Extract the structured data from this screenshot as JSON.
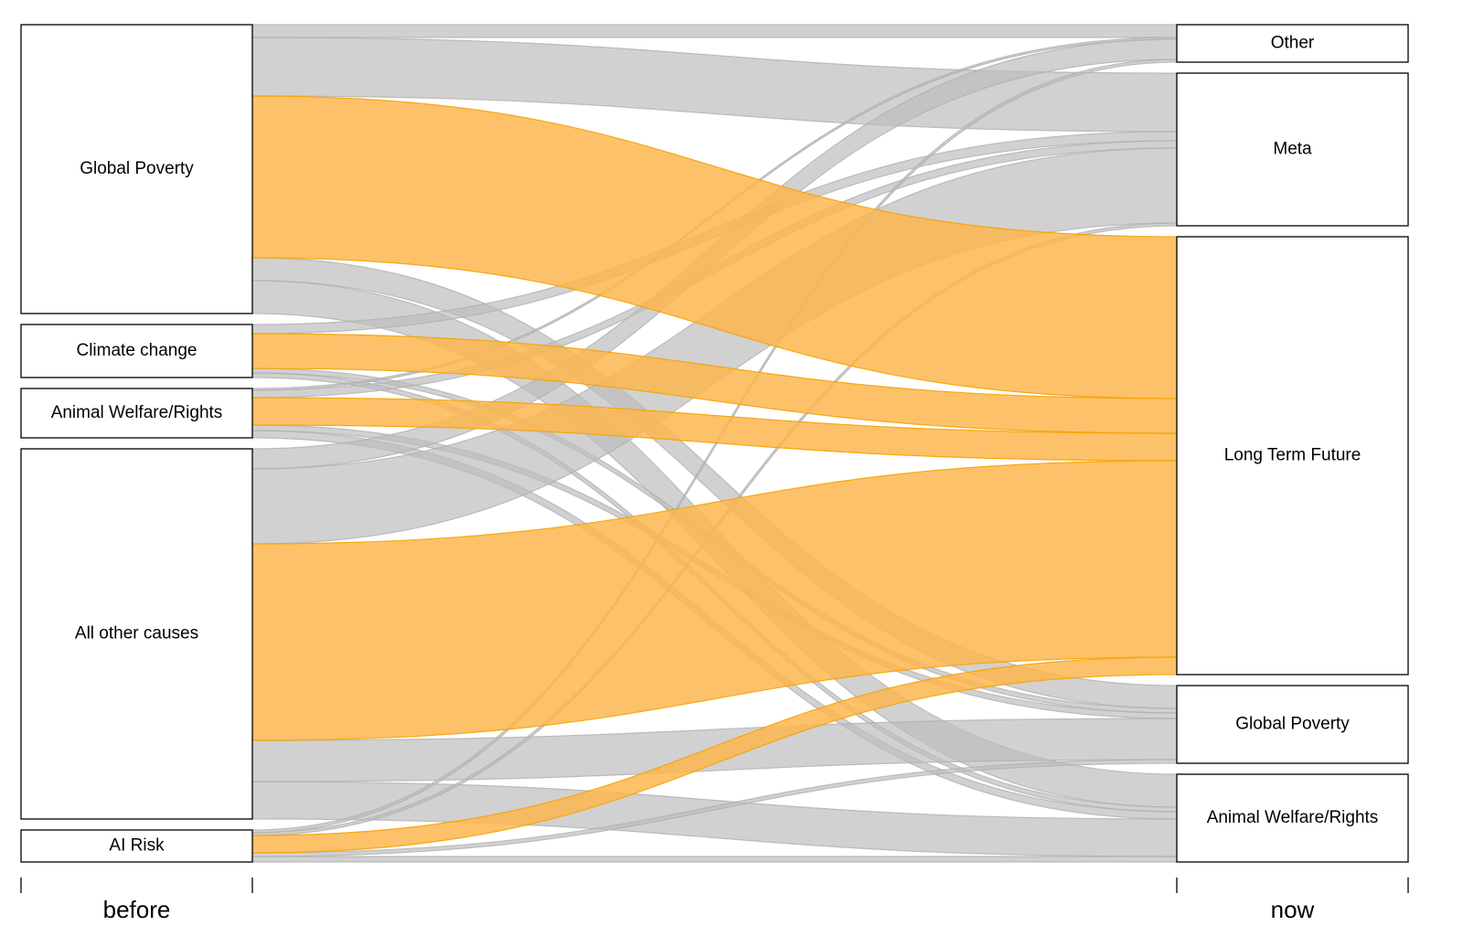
{
  "chart_data": {
    "type": "alluvial",
    "axes": [
      "before",
      "now"
    ],
    "sources": [
      "Global Poverty",
      "Climate change",
      "Animal Welfare/Rights",
      "All other causes",
      "AI Risk"
    ],
    "targets": [
      "Other",
      "Meta",
      "Long Term Future",
      "Global Poverty",
      "Animal Welfare/Rights"
    ],
    "target_colors": [
      "#bdbdbd",
      "#bdbdbd",
      "#fdb64f",
      "#bdbdbd",
      "#bdbdbd"
    ],
    "flows": [
      [
        14,
        64,
        177,
        25,
        36
      ],
      [
        0,
        10,
        38,
        5,
        5
      ],
      [
        2,
        8,
        30,
        6,
        8
      ],
      [
        22,
        82,
        215,
        45,
        41
      ],
      [
        3,
        3,
        19,
        4,
        6
      ]
    ]
  }
}
